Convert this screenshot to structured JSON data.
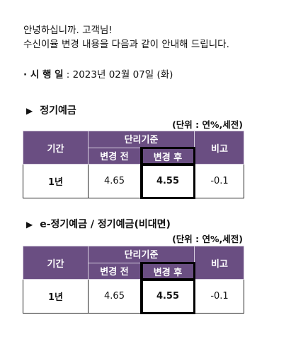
{
  "notice": {
    "greeting_line1": "안녕하십니까. 고객님!",
    "greeting_line2": "수신이율 변경 내용을 다음과 같이 안내해 드립니다.",
    "effective_label": "· 시 행 일",
    "effective_value": " : 2023년 02월 07일 (화)"
  },
  "sections": [
    {
      "title": "정기예금",
      "unit": "(단위 : 연%,세전)",
      "headers": {
        "period": "기간",
        "simple_rate": "단리기준",
        "before": "변경 전",
        "after": "변경 후",
        "note": "비고"
      },
      "row": {
        "period": "1년",
        "before": "4.65",
        "after": "4.55",
        "note": "-0.1"
      }
    },
    {
      "title": "e-정기예금 / 정기예금(비대면)",
      "unit": "(단위 : 연%,세전)",
      "headers": {
        "period": "기간",
        "simple_rate": "단리기준",
        "before": "변경 전",
        "after": "변경 후",
        "note": "비고"
      },
      "row": {
        "period": "1년",
        "before": "4.65",
        "after": "4.55",
        "note": "-0.1"
      }
    }
  ],
  "colors": {
    "header_bg": "#6a4e82",
    "header_text": "#ffffff"
  },
  "icons": {
    "section_marker": "triangle-right-icon"
  }
}
